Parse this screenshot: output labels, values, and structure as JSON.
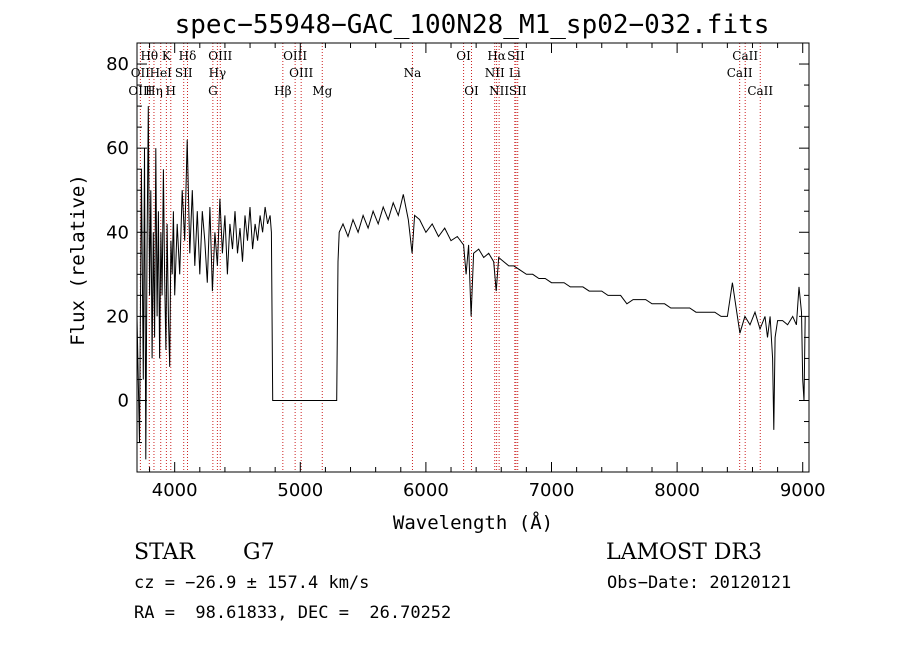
{
  "chart_data": {
    "type": "line",
    "title": "spec−55948−GAC_100N28_M1_sp02−032.fits",
    "xlabel": "Wavelength (Å)",
    "ylabel": "Flux (relative)",
    "xlim": [
      3700,
      9050
    ],
    "ylim": [
      -17,
      85
    ],
    "xticks": [
      4000,
      5000,
      6000,
      7000,
      8000,
      9000
    ],
    "yticks": [
      0,
      20,
      40,
      60,
      80
    ],
    "series": [
      {
        "name": "flux",
        "color": "#000000",
        "points": [
          [
            3700,
            20
          ],
          [
            3720,
            -10
          ],
          [
            3735,
            55
          ],
          [
            3750,
            5
          ],
          [
            3760,
            60
          ],
          [
            3770,
            -14
          ],
          [
            3780,
            35
          ],
          [
            3790,
            70
          ],
          [
            3800,
            25
          ],
          [
            3810,
            50
          ],
          [
            3820,
            10
          ],
          [
            3830,
            40
          ],
          [
            3840,
            15
          ],
          [
            3850,
            60
          ],
          [
            3860,
            20
          ],
          [
            3870,
            45
          ],
          [
            3880,
            10
          ],
          [
            3890,
            40
          ],
          [
            3900,
            25
          ],
          [
            3910,
            55
          ],
          [
            3920,
            30
          ],
          [
            3930,
            12
          ],
          [
            3940,
            42
          ],
          [
            3950,
            20
          ],
          [
            3960,
            8
          ],
          [
            3970,
            38
          ],
          [
            3980,
            30
          ],
          [
            3990,
            45
          ],
          [
            4000,
            25
          ],
          [
            4020,
            42
          ],
          [
            4040,
            30
          ],
          [
            4060,
            50
          ],
          [
            4080,
            38
          ],
          [
            4100,
            62
          ],
          [
            4120,
            35
          ],
          [
            4140,
            50
          ],
          [
            4160,
            32
          ],
          [
            4180,
            45
          ],
          [
            4200,
            30
          ],
          [
            4220,
            45
          ],
          [
            4240,
            38
          ],
          [
            4260,
            28
          ],
          [
            4280,
            46
          ],
          [
            4300,
            26
          ],
          [
            4320,
            40
          ],
          [
            4340,
            32
          ],
          [
            4360,
            48
          ],
          [
            4380,
            35
          ],
          [
            4400,
            44
          ],
          [
            4420,
            30
          ],
          [
            4440,
            42
          ],
          [
            4460,
            36
          ],
          [
            4480,
            45
          ],
          [
            4500,
            35
          ],
          [
            4520,
            41
          ],
          [
            4540,
            33
          ],
          [
            4560,
            44
          ],
          [
            4580,
            38
          ],
          [
            4600,
            46
          ],
          [
            4620,
            36
          ],
          [
            4640,
            42
          ],
          [
            4660,
            38
          ],
          [
            4680,
            44
          ],
          [
            4700,
            40
          ],
          [
            4720,
            46
          ],
          [
            4740,
            42
          ],
          [
            4760,
            44
          ],
          [
            4770,
            40
          ],
          [
            4780,
            0
          ],
          [
            4850,
            0
          ],
          [
            4950,
            0
          ],
          [
            5050,
            0
          ],
          [
            5150,
            0
          ],
          [
            5250,
            0
          ],
          [
            5290,
            0
          ],
          [
            5300,
            33
          ],
          [
            5310,
            40
          ],
          [
            5340,
            42
          ],
          [
            5380,
            39
          ],
          [
            5420,
            43
          ],
          [
            5460,
            40
          ],
          [
            5500,
            44
          ],
          [
            5540,
            41
          ],
          [
            5580,
            45
          ],
          [
            5620,
            42
          ],
          [
            5660,
            46
          ],
          [
            5700,
            43
          ],
          [
            5740,
            47
          ],
          [
            5780,
            44
          ],
          [
            5820,
            49
          ],
          [
            5860,
            43
          ],
          [
            5890,
            35
          ],
          [
            5910,
            44
          ],
          [
            5950,
            43
          ],
          [
            6000,
            40
          ],
          [
            6050,
            42
          ],
          [
            6100,
            39
          ],
          [
            6150,
            41
          ],
          [
            6200,
            38
          ],
          [
            6250,
            39
          ],
          [
            6300,
            37
          ],
          [
            6320,
            30
          ],
          [
            6340,
            37
          ],
          [
            6360,
            20
          ],
          [
            6380,
            35
          ],
          [
            6420,
            36
          ],
          [
            6460,
            34
          ],
          [
            6500,
            35
          ],
          [
            6540,
            33
          ],
          [
            6560,
            26
          ],
          [
            6580,
            34
          ],
          [
            6620,
            33
          ],
          [
            6660,
            32
          ],
          [
            6700,
            32
          ],
          [
            6750,
            31
          ],
          [
            6800,
            30
          ],
          [
            6850,
            30
          ],
          [
            6900,
            29
          ],
          [
            6950,
            29
          ],
          [
            7000,
            28
          ],
          [
            7050,
            28
          ],
          [
            7100,
            28
          ],
          [
            7150,
            27
          ],
          [
            7200,
            27
          ],
          [
            7250,
            27
          ],
          [
            7300,
            26
          ],
          [
            7350,
            26
          ],
          [
            7400,
            26
          ],
          [
            7450,
            25
          ],
          [
            7500,
            25
          ],
          [
            7550,
            25
          ],
          [
            7600,
            23
          ],
          [
            7650,
            24
          ],
          [
            7700,
            24
          ],
          [
            7750,
            24
          ],
          [
            7800,
            23
          ],
          [
            7850,
            23
          ],
          [
            7900,
            23
          ],
          [
            7950,
            22
          ],
          [
            8000,
            22
          ],
          [
            8050,
            22
          ],
          [
            8100,
            22
          ],
          [
            8150,
            21
          ],
          [
            8200,
            21
          ],
          [
            8250,
            21
          ],
          [
            8300,
            21
          ],
          [
            8350,
            20
          ],
          [
            8400,
            20
          ],
          [
            8440,
            28
          ],
          [
            8480,
            20
          ],
          [
            8500,
            16
          ],
          [
            8540,
            20
          ],
          [
            8580,
            18
          ],
          [
            8620,
            21
          ],
          [
            8660,
            17
          ],
          [
            8700,
            20
          ],
          [
            8720,
            15
          ],
          [
            8740,
            20
          ],
          [
            8760,
            10
          ],
          [
            8770,
            -7
          ],
          [
            8780,
            15
          ],
          [
            8800,
            19
          ],
          [
            8840,
            19
          ],
          [
            8880,
            18
          ],
          [
            8920,
            20
          ],
          [
            8950,
            18
          ],
          [
            8970,
            27
          ],
          [
            8990,
            21
          ],
          [
            9000,
            5
          ],
          [
            9010,
            0
          ],
          [
            9020,
            20
          ]
        ]
      }
    ],
    "lines": [
      {
        "label": "Hθ",
        "wave": 3798,
        "row": 0
      },
      {
        "label": "K",
        "wave": 3934,
        "row": 0
      },
      {
        "label": "Hδ",
        "wave": 4102,
        "row": 0
      },
      {
        "label": "OIII",
        "wave": 4363,
        "row": 0
      },
      {
        "label": "OIII",
        "wave": 4959,
        "row": 0
      },
      {
        "label": "OI",
        "wave": 6300,
        "row": 0
      },
      {
        "label": "Hα",
        "wave": 6563,
        "row": 0
      },
      {
        "label": "SII",
        "wave": 6717,
        "row": 0
      },
      {
        "label": "CaII",
        "wave": 8542,
        "row": 0
      },
      {
        "label": "OII",
        "wave": 3727,
        "row": 1
      },
      {
        "label": "HeI",
        "wave": 3889,
        "row": 1
      },
      {
        "label": "SII",
        "wave": 4072,
        "row": 1
      },
      {
        "label": "Hγ",
        "wave": 4340,
        "row": 1
      },
      {
        "label": "OIII",
        "wave": 5007,
        "row": 1
      },
      {
        "label": "Na",
        "wave": 5893,
        "row": 1
      },
      {
        "label": "NII",
        "wave": 6548,
        "row": 1
      },
      {
        "label": "Li",
        "wave": 6708,
        "row": 1
      },
      {
        "label": "CaII",
        "wave": 8498,
        "row": 1
      },
      {
        "label": "OIII",
        "wave": 3727,
        "row": 2
      },
      {
        "label": "Hη",
        "wave": 3835,
        "row": 2
      },
      {
        "label": "H",
        "wave": 3969,
        "row": 2
      },
      {
        "label": "G",
        "wave": 4304,
        "row": 2
      },
      {
        "label": "Hβ",
        "wave": 4861,
        "row": 2
      },
      {
        "label": "Mg",
        "wave": 5175,
        "row": 2
      },
      {
        "label": "OI",
        "wave": 6363,
        "row": 2
      },
      {
        "label": "NII",
        "wave": 6583,
        "row": 2
      },
      {
        "label": "SII",
        "wave": 6731,
        "row": 2
      },
      {
        "label": "CaII",
        "wave": 8662,
        "row": 2
      }
    ]
  },
  "info": {
    "object_class": "STAR",
    "subclass": "G7",
    "survey": "LAMOST DR3",
    "cz": "cz = −26.9 ± 157.4 km/s",
    "obs_date": "Obs−Date: 20120121",
    "coords": "RA =  98.61833, DEC =  26.70252"
  },
  "colors": {
    "line_marker": "#cc2222",
    "flux": "#000000",
    "axes": "#000000"
  }
}
